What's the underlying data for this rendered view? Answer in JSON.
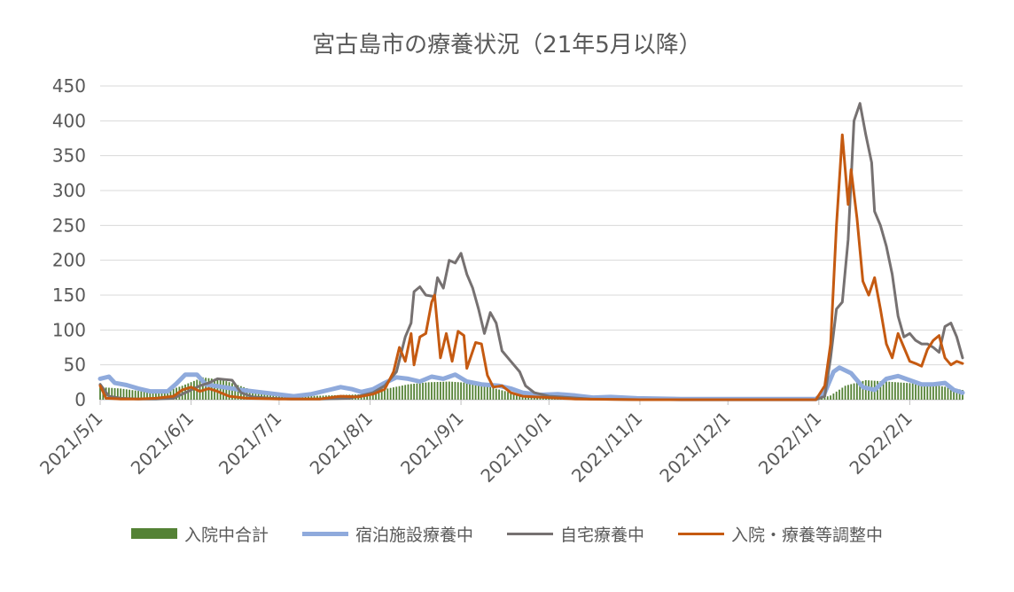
{
  "chart_data": {
    "type": "line",
    "title": "宮古島市の療養状況（21年5月以降）",
    "xlabel": "",
    "ylabel": "",
    "ylim": [
      0,
      450
    ],
    "yticks": [
      0,
      50,
      100,
      150,
      200,
      250,
      300,
      350,
      400,
      450
    ],
    "xlim": [
      "2021-05-01",
      "2022-02-19"
    ],
    "xtick_labels": [
      "2021/5/1",
      "2021/6/1",
      "2021/7/1",
      "2021/8/1",
      "2021/9/1",
      "2021/10/1",
      "2021/11/1",
      "2021/12/1",
      "2022/1/1",
      "2022/2/1"
    ],
    "grid": true,
    "legend_position": "bottom",
    "series": [
      {
        "name": "入院中合計",
        "kind": "bar",
        "color": "#548235",
        "points": [
          [
            "2021-05-01",
            18
          ],
          [
            "2021-05-08",
            16
          ],
          [
            "2021-05-15",
            12
          ],
          [
            "2021-05-22",
            10
          ],
          [
            "2021-05-29",
            20
          ],
          [
            "2021-06-05",
            32
          ],
          [
            "2021-06-12",
            28
          ],
          [
            "2021-06-19",
            18
          ],
          [
            "2021-06-26",
            8
          ],
          [
            "2021-07-03",
            5
          ],
          [
            "2021-07-10",
            5
          ],
          [
            "2021-07-17",
            6
          ],
          [
            "2021-07-24",
            7
          ],
          [
            "2021-07-31",
            8
          ],
          [
            "2021-08-07",
            16
          ],
          [
            "2021-08-14",
            22
          ],
          [
            "2021-08-21",
            25
          ],
          [
            "2021-08-28",
            26
          ],
          [
            "2021-09-04",
            24
          ],
          [
            "2021-09-11",
            18
          ],
          [
            "2021-09-18",
            10
          ],
          [
            "2021-09-25",
            5
          ],
          [
            "2021-10-02",
            4
          ],
          [
            "2021-10-09",
            3
          ],
          [
            "2021-10-16",
            2
          ],
          [
            "2021-10-31",
            1
          ],
          [
            "2021-11-30",
            0
          ],
          [
            "2021-12-31",
            0
          ],
          [
            "2022-01-05",
            6
          ],
          [
            "2022-01-10",
            20
          ],
          [
            "2022-01-17",
            28
          ],
          [
            "2022-01-24",
            26
          ],
          [
            "2022-01-31",
            24
          ],
          [
            "2022-02-07",
            22
          ],
          [
            "2022-02-14",
            18
          ],
          [
            "2022-02-19",
            14
          ]
        ]
      },
      {
        "name": "宿泊施設療養中",
        "kind": "line",
        "color": "#8faadc",
        "width": 5,
        "points": [
          [
            "2021-05-01",
            30
          ],
          [
            "2021-05-04",
            33
          ],
          [
            "2021-05-06",
            24
          ],
          [
            "2021-05-10",
            21
          ],
          [
            "2021-05-14",
            16
          ],
          [
            "2021-05-18",
            12
          ],
          [
            "2021-05-24",
            12
          ],
          [
            "2021-05-27",
            23
          ],
          [
            "2021-05-30",
            36
          ],
          [
            "2021-06-03",
            36
          ],
          [
            "2021-06-06",
            22
          ],
          [
            "2021-06-12",
            18
          ],
          [
            "2021-06-18",
            14
          ],
          [
            "2021-06-24",
            11
          ],
          [
            "2021-06-30",
            8
          ],
          [
            "2021-07-06",
            5
          ],
          [
            "2021-07-12",
            8
          ],
          [
            "2021-07-18",
            14
          ],
          [
            "2021-07-22",
            18
          ],
          [
            "2021-07-26",
            15
          ],
          [
            "2021-07-29",
            11
          ],
          [
            "2021-08-02",
            15
          ],
          [
            "2021-08-06",
            24
          ],
          [
            "2021-08-10",
            32
          ],
          [
            "2021-08-14",
            30
          ],
          [
            "2021-08-18",
            26
          ],
          [
            "2021-08-22",
            33
          ],
          [
            "2021-08-26",
            30
          ],
          [
            "2021-08-30",
            36
          ],
          [
            "2021-09-03",
            26
          ],
          [
            "2021-09-08",
            22
          ],
          [
            "2021-09-14",
            20
          ],
          [
            "2021-09-18",
            16
          ],
          [
            "2021-09-22",
            10
          ],
          [
            "2021-09-28",
            7
          ],
          [
            "2021-10-04",
            8
          ],
          [
            "2021-10-10",
            6
          ],
          [
            "2021-10-16",
            3
          ],
          [
            "2021-10-22",
            4
          ],
          [
            "2021-10-31",
            2
          ],
          [
            "2021-11-15",
            1
          ],
          [
            "2021-12-31",
            1
          ],
          [
            "2022-01-03",
            10
          ],
          [
            "2022-01-06",
            40
          ],
          [
            "2022-01-08",
            46
          ],
          [
            "2022-01-12",
            38
          ],
          [
            "2022-01-16",
            18
          ],
          [
            "2022-01-20",
            14
          ],
          [
            "2022-01-24",
            30
          ],
          [
            "2022-01-28",
            34
          ],
          [
            "2022-02-01",
            28
          ],
          [
            "2022-02-05",
            22
          ],
          [
            "2022-02-09",
            22
          ],
          [
            "2022-02-13",
            24
          ],
          [
            "2022-02-16",
            14
          ],
          [
            "2022-02-19",
            10
          ]
        ]
      },
      {
        "name": "自宅療養中",
        "kind": "line",
        "color": "#767171",
        "width": 3,
        "points": [
          [
            "2021-05-01",
            22
          ],
          [
            "2021-05-04",
            5
          ],
          [
            "2021-05-08",
            2
          ],
          [
            "2021-05-14",
            1
          ],
          [
            "2021-05-20",
            1
          ],
          [
            "2021-05-26",
            2
          ],
          [
            "2021-05-31",
            12
          ],
          [
            "2021-06-04",
            20
          ],
          [
            "2021-06-07",
            24
          ],
          [
            "2021-06-10",
            30
          ],
          [
            "2021-06-15",
            28
          ],
          [
            "2021-06-18",
            10
          ],
          [
            "2021-06-22",
            4
          ],
          [
            "2021-06-28",
            2
          ],
          [
            "2021-07-05",
            1
          ],
          [
            "2021-07-15",
            1
          ],
          [
            "2021-07-25",
            2
          ],
          [
            "2021-08-02",
            10
          ],
          [
            "2021-08-06",
            20
          ],
          [
            "2021-08-10",
            40
          ],
          [
            "2021-08-13",
            90
          ],
          [
            "2021-08-15",
            110
          ],
          [
            "2021-08-16",
            155
          ],
          [
            "2021-08-18",
            162
          ],
          [
            "2021-08-20",
            150
          ],
          [
            "2021-08-23",
            148
          ],
          [
            "2021-08-24",
            175
          ],
          [
            "2021-08-26",
            160
          ],
          [
            "2021-08-28",
            200
          ],
          [
            "2021-08-30",
            196
          ],
          [
            "2021-09-01",
            210
          ],
          [
            "2021-09-03",
            180
          ],
          [
            "2021-09-05",
            160
          ],
          [
            "2021-09-07",
            130
          ],
          [
            "2021-09-09",
            95
          ],
          [
            "2021-09-11",
            125
          ],
          [
            "2021-09-13",
            110
          ],
          [
            "2021-09-15",
            70
          ],
          [
            "2021-09-18",
            55
          ],
          [
            "2021-09-21",
            40
          ],
          [
            "2021-09-23",
            20
          ],
          [
            "2021-09-26",
            10
          ],
          [
            "2021-10-01",
            5
          ],
          [
            "2021-10-08",
            3
          ],
          [
            "2021-10-15",
            1
          ],
          [
            "2021-11-01",
            0
          ],
          [
            "2021-12-31",
            0
          ],
          [
            "2022-01-03",
            5
          ],
          [
            "2022-01-05",
            60
          ],
          [
            "2022-01-07",
            130
          ],
          [
            "2022-01-09",
            140
          ],
          [
            "2022-01-11",
            230
          ],
          [
            "2022-01-13",
            400
          ],
          [
            "2022-01-15",
            425
          ],
          [
            "2022-01-17",
            380
          ],
          [
            "2022-01-19",
            340
          ],
          [
            "2022-01-20",
            270
          ],
          [
            "2022-01-22",
            250
          ],
          [
            "2022-01-24",
            220
          ],
          [
            "2022-01-26",
            180
          ],
          [
            "2022-01-28",
            120
          ],
          [
            "2022-01-30",
            90
          ],
          [
            "2022-02-01",
            95
          ],
          [
            "2022-02-03",
            85
          ],
          [
            "2022-02-05",
            80
          ],
          [
            "2022-02-07",
            80
          ],
          [
            "2022-02-09",
            75
          ],
          [
            "2022-02-11",
            68
          ],
          [
            "2022-02-13",
            105
          ],
          [
            "2022-02-15",
            110
          ],
          [
            "2022-02-17",
            90
          ],
          [
            "2022-02-19",
            60
          ]
        ]
      },
      {
        "name": "入院・療養等調整中",
        "kind": "line",
        "color": "#c55a11",
        "width": 3,
        "points": [
          [
            "2021-05-01",
            20
          ],
          [
            "2021-05-03",
            2
          ],
          [
            "2021-05-08",
            1
          ],
          [
            "2021-05-14",
            1
          ],
          [
            "2021-05-20",
            2
          ],
          [
            "2021-05-26",
            5
          ],
          [
            "2021-05-29",
            14
          ],
          [
            "2021-06-01",
            18
          ],
          [
            "2021-06-04",
            12
          ],
          [
            "2021-06-07",
            16
          ],
          [
            "2021-06-10",
            12
          ],
          [
            "2021-06-14",
            5
          ],
          [
            "2021-06-20",
            2
          ],
          [
            "2021-07-01",
            1
          ],
          [
            "2021-07-15",
            1
          ],
          [
            "2021-07-22",
            5
          ],
          [
            "2021-07-28",
            4
          ],
          [
            "2021-08-02",
            8
          ],
          [
            "2021-08-06",
            15
          ],
          [
            "2021-08-09",
            40
          ],
          [
            "2021-08-11",
            75
          ],
          [
            "2021-08-13",
            55
          ],
          [
            "2021-08-15",
            95
          ],
          [
            "2021-08-16",
            50
          ],
          [
            "2021-08-18",
            90
          ],
          [
            "2021-08-20",
            95
          ],
          [
            "2021-08-22",
            140
          ],
          [
            "2021-08-23",
            150
          ],
          [
            "2021-08-25",
            60
          ],
          [
            "2021-08-27",
            95
          ],
          [
            "2021-08-29",
            55
          ],
          [
            "2021-08-31",
            98
          ],
          [
            "2021-09-02",
            92
          ],
          [
            "2021-09-03",
            45
          ],
          [
            "2021-09-06",
            82
          ],
          [
            "2021-09-08",
            80
          ],
          [
            "2021-09-10",
            35
          ],
          [
            "2021-09-12",
            18
          ],
          [
            "2021-09-15",
            20
          ],
          [
            "2021-09-18",
            10
          ],
          [
            "2021-09-22",
            5
          ],
          [
            "2021-10-01",
            3
          ],
          [
            "2021-10-10",
            1
          ],
          [
            "2021-11-01",
            0
          ],
          [
            "2021-12-31",
            0
          ],
          [
            "2022-01-03",
            20
          ],
          [
            "2022-01-05",
            80
          ],
          [
            "2022-01-07",
            250
          ],
          [
            "2022-01-09",
            380
          ],
          [
            "2022-01-11",
            280
          ],
          [
            "2022-01-12",
            330
          ],
          [
            "2022-01-14",
            260
          ],
          [
            "2022-01-16",
            170
          ],
          [
            "2022-01-18",
            150
          ],
          [
            "2022-01-20",
            175
          ],
          [
            "2022-01-22",
            130
          ],
          [
            "2022-01-24",
            80
          ],
          [
            "2022-01-26",
            60
          ],
          [
            "2022-01-28",
            95
          ],
          [
            "2022-01-30",
            75
          ],
          [
            "2022-02-01",
            55
          ],
          [
            "2022-02-03",
            52
          ],
          [
            "2022-02-05",
            48
          ],
          [
            "2022-02-07",
            72
          ],
          [
            "2022-02-09",
            85
          ],
          [
            "2022-02-11",
            92
          ],
          [
            "2022-02-13",
            60
          ],
          [
            "2022-02-15",
            50
          ],
          [
            "2022-02-17",
            55
          ],
          [
            "2022-02-19",
            52
          ]
        ]
      }
    ]
  },
  "colors": {
    "text": "#595959",
    "gridline": "#d9d9d9",
    "axis": "#bfbfbf"
  }
}
